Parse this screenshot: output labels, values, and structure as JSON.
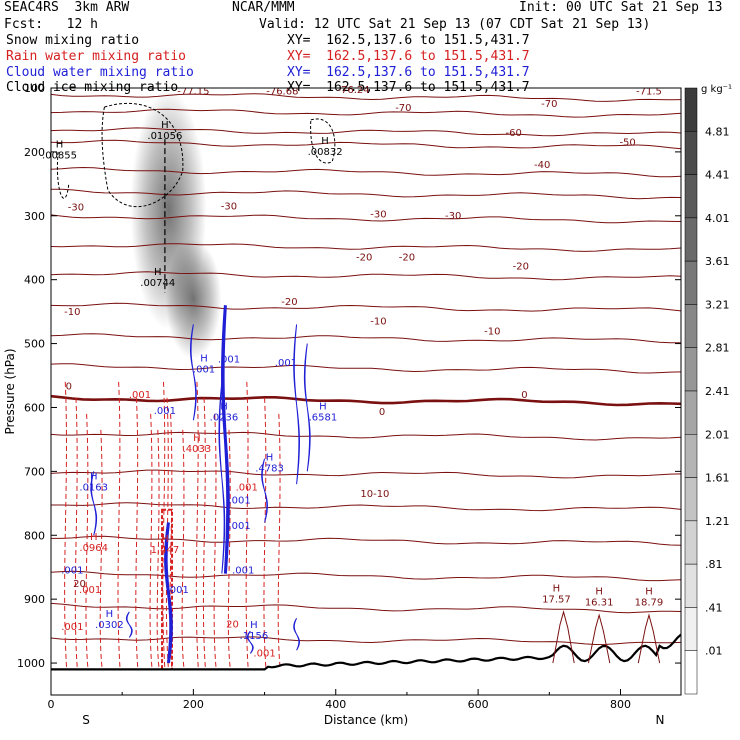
{
  "header": {
    "model": "SEAC4RS  3km ARW",
    "center": "NCAR/MMM",
    "init": "Init: 00 UTC Sat 21 Sep 13",
    "fcst": "Fcst:   12 h",
    "valid": "Valid: 12 UTC Sat 21 Sep 13 (07 CDT Sat 21 Sep 13)",
    "fields": [
      {
        "name": "Snow mixing ratio",
        "xy": "XY=  162.5,137.6 to 151.5,431.7",
        "color": "#000000"
      },
      {
        "name": "Rain water mixing ratio",
        "xy": "XY=  162.5,137.6 to 151.5,431.7",
        "color": "#d62020"
      },
      {
        "name": "Cloud water mixing ratio",
        "xy": "XY=  162.5,137.6 to 151.5,431.7",
        "color": "#1f1fd6"
      },
      {
        "name": "Cloud ice mixing ratio",
        "xy": "XY=  162.5,137.6 to 151.5,431.7",
        "color": "#000000"
      }
    ]
  },
  "chart_data": {
    "type": "heatmap",
    "xlabel": "Distance (km)",
    "ylabel": "Pressure (hPa)",
    "xlim": [
      0,
      885
    ],
    "ylim": [
      1050,
      100
    ],
    "x_ticks": [
      0,
      200,
      400,
      600,
      800
    ],
    "y_ticks": [
      100,
      200,
      300,
      400,
      500,
      600,
      700,
      800,
      900,
      1000
    ],
    "end_labels": {
      "left": "S",
      "right": "N"
    },
    "colorbar": {
      "unit": "g kg⁻¹",
      "levels": [
        "4.81",
        "4.41",
        "4.01",
        "3.61",
        "3.21",
        "2.81",
        "2.41",
        "2.01",
        "1.61",
        "1.21",
        ".81",
        ".41",
        ".01"
      ]
    },
    "temperature_contours": [
      {
        "label": "-70",
        "x": 500,
        "p": 140
      },
      {
        "label": "-60",
        "x": 650,
        "p": 175
      },
      {
        "label": "-50",
        "x": 810,
        "p": 192
      },
      {
        "label": "-40",
        "x": 690,
        "p": 228
      },
      {
        "label": "-30",
        "x": 555,
        "p": 290
      },
      {
        "label": "-20",
        "x": 545,
        "p": 360
      },
      {
        "label": "-10",
        "x": 415,
        "p": 460
      },
      {
        "label": "0",
        "x": 675,
        "p": 582
      }
    ],
    "contour_labels": [
      {
        "text": "-77.15",
        "x": 200,
        "p": 110,
        "color": "#7a1010"
      },
      {
        "text": "-76.68",
        "x": 325,
        "p": 110,
        "color": "#7a1010"
      },
      {
        "text": "-76.24",
        "x": 425,
        "p": 108,
        "color": "#7a1010"
      },
      {
        "text": "-70",
        "x": 495,
        "p": 136,
        "color": "#7a1010"
      },
      {
        "text": "-70",
        "x": 700,
        "p": 130,
        "color": "#7a1010"
      },
      {
        "text": "-71.5",
        "x": 840,
        "p": 110,
        "color": "#7a1010"
      },
      {
        "text": "-60",
        "x": 650,
        "p": 175,
        "color": "#7a1010"
      },
      {
        "text": "-50",
        "x": 810,
        "p": 190,
        "color": "#7a1010"
      },
      {
        "text": "-40",
        "x": 690,
        "p": 225,
        "color": "#7a1010"
      },
      {
        "text": "-30",
        "x": 35,
        "p": 292,
        "color": "#7a1010"
      },
      {
        "text": "-30",
        "x": 250,
        "p": 290,
        "color": "#7a1010"
      },
      {
        "text": "-30",
        "x": 460,
        "p": 303,
        "color": "#7a1010"
      },
      {
        "text": "-30",
        "x": 565,
        "p": 305,
        "color": "#7a1010"
      },
      {
        "text": "-20",
        "x": 440,
        "p": 370,
        "color": "#7a1010"
      },
      {
        "text": "-20",
        "x": 500,
        "p": 370,
        "color": "#7a1010"
      },
      {
        "text": "-20",
        "x": 660,
        "p": 384,
        "color": "#7a1010"
      },
      {
        "text": "-20",
        "x": 335,
        "p": 440,
        "color": "#7a1010"
      },
      {
        "text": "-10",
        "x": 30,
        "p": 455,
        "color": "#7a1010"
      },
      {
        "text": "-10",
        "x": 460,
        "p": 470,
        "color": "#7a1010"
      },
      {
        "text": "-10",
        "x": 620,
        "p": 486,
        "color": "#7a1010"
      },
      {
        "text": "0",
        "x": 25,
        "p": 572,
        "color": "#7a1010"
      },
      {
        "text": "0",
        "x": 465,
        "p": 612,
        "color": "#7a1010"
      },
      {
        "text": "0",
        "x": 665,
        "p": 585,
        "color": "#7a1010"
      },
      {
        "text": "10-10",
        "x": 455,
        "p": 740,
        "color": "#7a1010"
      },
      {
        "text": "20",
        "x": 40,
        "p": 881,
        "color": "#7a1010"
      },
      {
        "text": "20",
        "x": 255,
        "p": 944,
        "color": "#d62020"
      }
    ],
    "extrema": [
      {
        "label": "H",
        "value": ".01056",
        "x": 160,
        "p": 180,
        "color": "#000000"
      },
      {
        "label": "H",
        "value": ".00855",
        "x": 12,
        "p": 210,
        "color": "#000000"
      },
      {
        "label": "H",
        "value": ".00832",
        "x": 385,
        "p": 205,
        "color": "#000000"
      },
      {
        "label": "H",
        "value": ".00744",
        "x": 150,
        "p": 410,
        "color": "#000000"
      },
      {
        "label": "H",
        "value": ".001",
        "x": 215,
        "p": 545,
        "color": "#1f1fd6"
      },
      {
        "label": "H",
        "value": ".0236",
        "x": 243,
        "p": 620,
        "color": "#1f1fd6"
      },
      {
        "label": "H",
        "value": ".6581",
        "x": 382,
        "p": 620,
        "color": "#1f1fd6"
      },
      {
        "label": "H",
        "value": ".4033",
        "x": 205,
        "p": 670,
        "color": "#d62020"
      },
      {
        "label": "H",
        "value": ".4783",
        "x": 307,
        "p": 700,
        "color": "#1f1fd6"
      },
      {
        "label": "H",
        "value": ".0163",
        "x": 60,
        "p": 730,
        "color": "#1f1fd6"
      },
      {
        "label": "H",
        "value": ".0964",
        "x": 60,
        "p": 825,
        "color": "#d62020"
      },
      {
        "label": "H",
        "value": "1.447",
        "x": 160,
        "p": 828,
        "color": "#d62020"
      },
      {
        "label": "H",
        "value": ".0302",
        "x": 82,
        "p": 945,
        "color": "#1f1fd6"
      },
      {
        "label": "H",
        "value": ".1156",
        "x": 285,
        "p": 962,
        "color": "#1f1fd6"
      },
      {
        "label": "H",
        "value": "17.57",
        "x": 710,
        "p": 905,
        "color": "#7a1010"
      },
      {
        "label": "H",
        "value": "16.31",
        "x": 770,
        "p": 910,
        "color": "#7a1010"
      },
      {
        "label": "H",
        "value": "18.79",
        "x": 840,
        "p": 910,
        "color": "#7a1010"
      }
    ],
    "small_labels": [
      {
        "text": ".001",
        "x": 250,
        "p": 530,
        "color": "#1f1fd6"
      },
      {
        "text": ".001",
        "x": 330,
        "p": 535,
        "color": "#1f1fd6"
      },
      {
        "text": ".001",
        "x": 125,
        "p": 585,
        "color": "#d62020"
      },
      {
        "text": ".001",
        "x": 160,
        "p": 610,
        "color": "#1f1fd6"
      },
      {
        "text": ".001",
        "x": 275,
        "p": 730,
        "color": "#d62020"
      },
      {
        "text": ".001",
        "x": 265,
        "p": 750,
        "color": "#1f1fd6"
      },
      {
        "text": ".001",
        "x": 265,
        "p": 790,
        "color": "#1f1fd6"
      },
      {
        "text": ".001",
        "x": 30,
        "p": 860,
        "color": "#1f1fd6"
      },
      {
        "text": ".001",
        "x": 55,
        "p": 890,
        "color": "#d62020"
      },
      {
        "text": ".001",
        "x": 178,
        "p": 890,
        "color": "#1f1fd6"
      },
      {
        "text": ".001",
        "x": 270,
        "p": 860,
        "color": "#1f1fd6"
      },
      {
        "text": ".001",
        "x": 30,
        "p": 948,
        "color": "#d62020"
      },
      {
        "text": ".001",
        "x": 300,
        "p": 990,
        "color": "#d62020"
      }
    ]
  }
}
